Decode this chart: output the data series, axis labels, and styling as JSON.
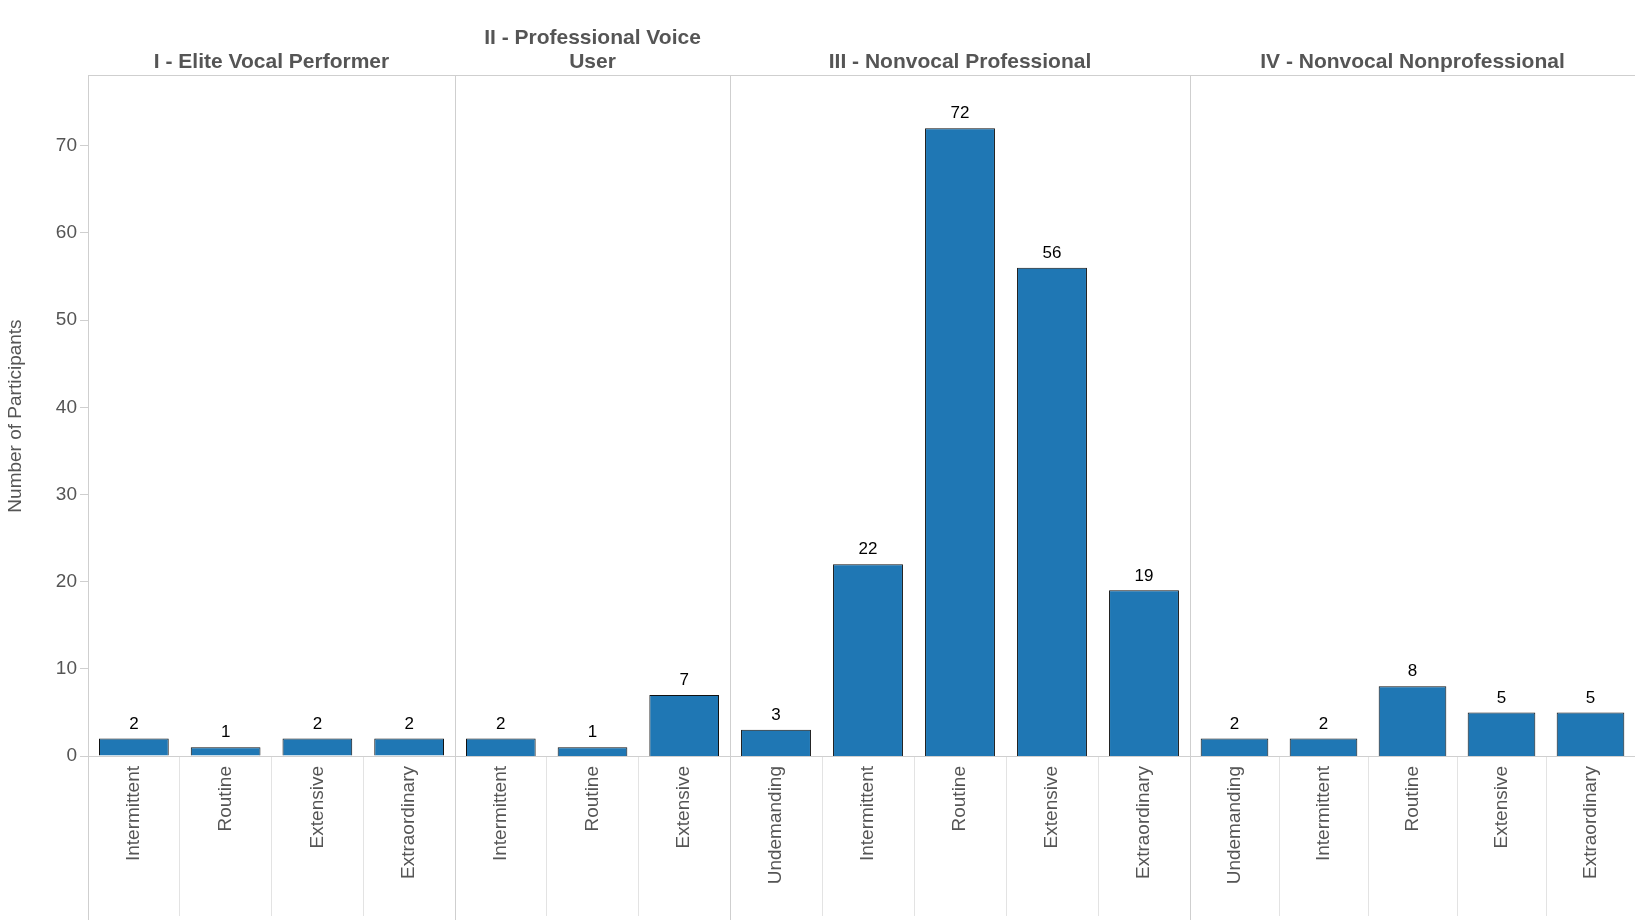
{
  "chart_data": [
    {
      "type": "bar",
      "title": "I - Elite Vocal Performer",
      "ylabel": "Number of Participants",
      "categories": [
        "Intermittent",
        "Routine",
        "Extensive",
        "Extraordinary"
      ],
      "values": [
        2,
        1,
        2,
        2
      ],
      "color": "#1f77b4",
      "ylim": [
        0,
        78
      ],
      "yticks": [
        0,
        10,
        20,
        30,
        40,
        50,
        60,
        70
      ],
      "data_labels": true
    },
    {
      "type": "bar",
      "title": "II - Professional Voice User",
      "categories": [
        "Intermittent",
        "Routine",
        "Extensive"
      ],
      "values": [
        2,
        1,
        7
      ],
      "color": "#1f77b4",
      "ylim": [
        0,
        78
      ],
      "yticks": [
        0,
        10,
        20,
        30,
        40,
        50,
        60,
        70
      ],
      "data_labels": true,
      "tick_labels": "x"
    },
    {
      "type": "bar",
      "title": "III - Nonvocal Professional",
      "categories": [
        "Undemanding",
        "Intermittent",
        "Routine",
        "Extensive",
        "Extraordinary"
      ],
      "values": [
        3,
        22,
        72,
        56,
        19
      ],
      "color": "#1f77b4",
      "ylim": [
        0,
        78
      ],
      "yticks": [
        0,
        10,
        20,
        30,
        40,
        50,
        60,
        70
      ],
      "data_labels": true,
      "tick_labels": "x"
    },
    {
      "type": "bar",
      "title": "IV - Nonvocal Nonprofessional",
      "categories": [
        "Undemanding",
        "Intermittent",
        "Routine",
        "Extensive",
        "Extraordinary"
      ],
      "values": [
        2,
        2,
        8,
        5,
        5
      ],
      "color": "#1f77b4",
      "ylim": [
        0,
        78
      ],
      "yticks": [
        0,
        10,
        20,
        30,
        40,
        50,
        60,
        70
      ],
      "data_labels": true,
      "tick_labels": "x"
    }
  ]
}
